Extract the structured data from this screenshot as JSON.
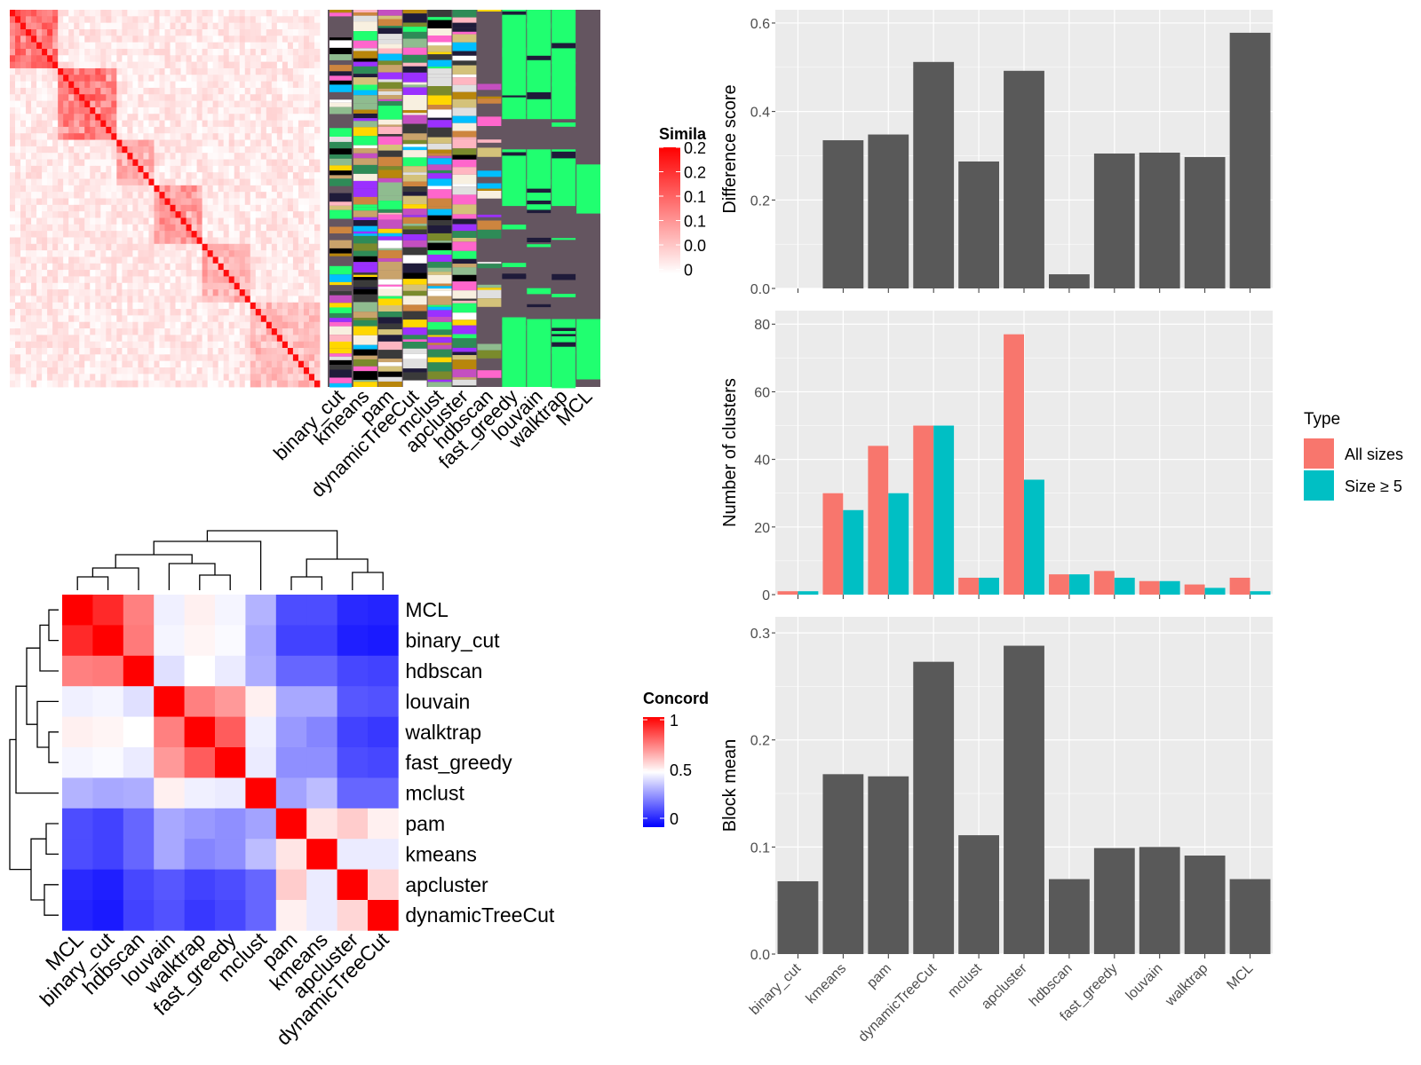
{
  "colors": {
    "panel_bg": "#ebebeb",
    "grid": "#ffffff",
    "bar_dark": "#595959",
    "all_sizes": "#f8766d",
    "size_ge5": "#00bfc4",
    "heat_high": "#ff0000",
    "heat_mid": "#ffffff",
    "heat_low": "#0000ff",
    "annot_bg": "#645560"
  },
  "chart_data": [
    {
      "type": "heatmap",
      "name": "similarity-heatmap",
      "legend_title": "Simila",
      "legend_ticks": [
        "0.2",
        "0.2",
        "0.1",
        "0.1",
        "0.0",
        "0"
      ],
      "column_labels": [
        "binary_cut",
        "kmeans",
        "pam",
        "dynamicTreeCut",
        "mclust",
        "apcluster",
        "hdbscan",
        "fast_greedy",
        "louvain",
        "walktrap",
        "MCL"
      ]
    },
    {
      "type": "heatmap",
      "name": "concordance-heatmap",
      "legend_title": "Concord",
      "legend_ticks": [
        "1",
        "0.5",
        "0"
      ],
      "rows": [
        "MCL",
        "binary_cut",
        "hdbscan",
        "louvain",
        "walktrap",
        "fast_greedy",
        "mclust",
        "pam",
        "kmeans",
        "apcluster",
        "dynamicTreeCut"
      ],
      "columns": [
        "MCL",
        "binary_cut",
        "hdbscan",
        "louvain",
        "walktrap",
        "fast_greedy",
        "mclust",
        "pam",
        "kmeans",
        "apcluster",
        "dynamicTreeCut"
      ],
      "values": [
        [
          1.0,
          0.92,
          0.75,
          0.47,
          0.53,
          0.48,
          0.35,
          0.15,
          0.15,
          0.08,
          0.07
        ],
        [
          0.92,
          1.0,
          0.76,
          0.48,
          0.52,
          0.49,
          0.33,
          0.13,
          0.13,
          0.06,
          0.05
        ],
        [
          0.75,
          0.76,
          1.0,
          0.44,
          0.5,
          0.46,
          0.34,
          0.2,
          0.2,
          0.14,
          0.13
        ],
        [
          0.47,
          0.48,
          0.44,
          1.0,
          0.75,
          0.7,
          0.53,
          0.33,
          0.33,
          0.17,
          0.16
        ],
        [
          0.53,
          0.52,
          0.5,
          0.75,
          1.0,
          0.82,
          0.47,
          0.3,
          0.26,
          0.13,
          0.11
        ],
        [
          0.48,
          0.49,
          0.46,
          0.7,
          0.82,
          1.0,
          0.46,
          0.28,
          0.28,
          0.15,
          0.14
        ],
        [
          0.35,
          0.33,
          0.34,
          0.53,
          0.47,
          0.46,
          1.0,
          0.32,
          0.37,
          0.2,
          0.2
        ],
        [
          0.15,
          0.13,
          0.2,
          0.33,
          0.3,
          0.28,
          0.32,
          1.0,
          0.55,
          0.6,
          0.53
        ],
        [
          0.15,
          0.13,
          0.2,
          0.33,
          0.26,
          0.28,
          0.37,
          0.55,
          1.0,
          0.46,
          0.46
        ],
        [
          0.08,
          0.06,
          0.14,
          0.17,
          0.13,
          0.15,
          0.2,
          0.6,
          0.46,
          1.0,
          0.58
        ],
        [
          0.07,
          0.05,
          0.13,
          0.16,
          0.11,
          0.14,
          0.2,
          0.53,
          0.46,
          0.58,
          1.0
        ]
      ]
    },
    {
      "type": "bar",
      "name": "difference-score",
      "categories": [
        "binary_cut",
        "kmeans",
        "pam",
        "dynamicTreeCut",
        "mclust",
        "apcluster",
        "hdbscan",
        "fast_greedy",
        "louvain",
        "walktrap",
        "MCL"
      ],
      "values": [
        0.0,
        0.335,
        0.348,
        0.512,
        0.287,
        0.492,
        0.032,
        0.305,
        0.307,
        0.297,
        0.578
      ],
      "ylabel": "Difference score",
      "ylim": [
        0,
        0.6
      ],
      "yticks": [
        "0.0",
        "0.2",
        "0.4",
        "0.6"
      ],
      "yticks_num": [
        0,
        0.2,
        0.4,
        0.6
      ]
    },
    {
      "type": "bar",
      "name": "number-of-clusters",
      "categories": [
        "binary_cut",
        "kmeans",
        "pam",
        "dynamicTreeCut",
        "mclust",
        "apcluster",
        "hdbscan",
        "fast_greedy",
        "louvain",
        "walktrap",
        "MCL"
      ],
      "series": [
        {
          "name": "All sizes",
          "values": [
            1,
            30,
            44,
            50,
            5,
            77,
            6,
            7,
            4,
            3,
            5
          ]
        },
        {
          "name": "Size ≥ 5",
          "values": [
            1,
            25,
            30,
            50,
            5,
            34,
            6,
            5,
            4,
            2,
            1
          ]
        }
      ],
      "ylabel": "Number of clusters",
      "ylim": [
        0,
        80
      ],
      "yticks": [
        "0",
        "20",
        "40",
        "60",
        "80"
      ],
      "yticks_num": [
        0,
        20,
        40,
        60,
        80
      ],
      "legend_title": "Type",
      "legend_position": "right"
    },
    {
      "type": "bar",
      "name": "block-mean",
      "categories": [
        "binary_cut",
        "kmeans",
        "pam",
        "dynamicTreeCut",
        "mclust",
        "apcluster",
        "hdbscan",
        "fast_greedy",
        "louvain",
        "walktrap",
        "MCL"
      ],
      "values": [
        0.068,
        0.168,
        0.166,
        0.273,
        0.111,
        0.288,
        0.07,
        0.099,
        0.1,
        0.092,
        0.07
      ],
      "ylabel": "Block mean",
      "ylim": [
        0,
        0.3
      ],
      "yticks": [
        "0.0",
        "0.1",
        "0.2",
        "0.3"
      ],
      "yticks_num": [
        0,
        0.1,
        0.2,
        0.3
      ]
    }
  ]
}
